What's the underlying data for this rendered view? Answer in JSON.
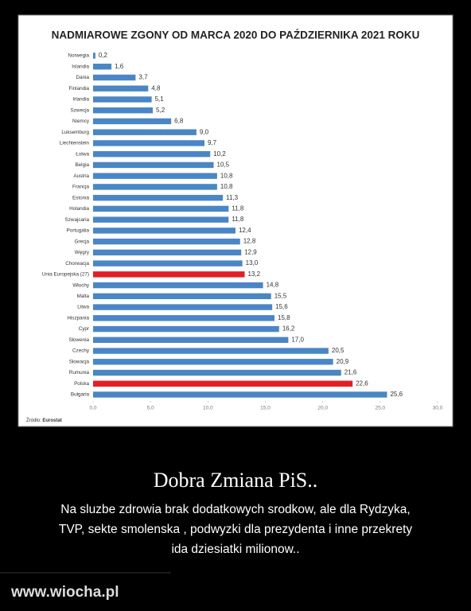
{
  "chart_data": {
    "type": "hbar",
    "title": "NADMIAROWE ZGONY OD MARCA 2020 DO PAŹDZIERNIKA 2021 ROKU",
    "categories": [
      "Norwegia",
      "Islandia",
      "Dania",
      "Finlandia",
      "Irlandia",
      "Szwecja",
      "Niemcy",
      "Luksemburg",
      "Liechtenstein",
      "Łotwa",
      "Belgia",
      "Austria",
      "Francja",
      "Estonia",
      "Holandia",
      "Szwajcaria",
      "Portugalia",
      "Grecja",
      "Węgry",
      "Chorwacja",
      "Unia Europejska (27)",
      "Włochy",
      "Malta",
      "Litwa",
      "Hiszpania",
      "Cypr",
      "Słowenia",
      "Czechy",
      "Słowacja",
      "Rumunia",
      "Polska",
      "Bułgaria"
    ],
    "values": [
      0.2,
      1.6,
      3.7,
      4.8,
      5.1,
      5.2,
      6.8,
      9.0,
      9.7,
      10.2,
      10.5,
      10.8,
      10.8,
      11.3,
      11.8,
      11.8,
      12.4,
      12.8,
      12.9,
      13.0,
      13.2,
      14.8,
      15.5,
      15.6,
      15.8,
      16.2,
      17.0,
      20.5,
      20.9,
      21.6,
      22.6,
      25.6
    ],
    "value_labels": [
      "0,2",
      "1,6",
      "3,7",
      "4,8",
      "5,1",
      "5,2",
      "6,8",
      "9,0",
      "9,7",
      "10,2",
      "10,5",
      "10,8",
      "10,8",
      "11,3",
      "11,8",
      "11,8",
      "12,4",
      "12,8",
      "12,9",
      "13,0",
      "13,2",
      "14,8",
      "15,5",
      "15,6",
      "15,8",
      "16,2",
      "17,0",
      "20,5",
      "20,9",
      "21,6",
      "22,6",
      "25,6"
    ],
    "colors": [
      "#4a86c5",
      "#4a86c5",
      "#4a86c5",
      "#4a86c5",
      "#4a86c5",
      "#4a86c5",
      "#4a86c5",
      "#4a86c5",
      "#4a86c5",
      "#4a86c5",
      "#4a86c5",
      "#4a86c5",
      "#4a86c5",
      "#4a86c5",
      "#4a86c5",
      "#4a86c5",
      "#4a86c5",
      "#4a86c5",
      "#4a86c5",
      "#4a86c5",
      "#e31e24",
      "#4a86c5",
      "#4a86c5",
      "#4a86c5",
      "#4a86c5",
      "#4a86c5",
      "#4a86c5",
      "#4a86c5",
      "#4a86c5",
      "#4a86c5",
      "#e31e24",
      "#4a86c5"
    ],
    "xlim": [
      0,
      30
    ],
    "xticks": [
      {
        "value": 0,
        "label": "0,0"
      },
      {
        "value": 5,
        "label": "5,0"
      },
      {
        "value": 10,
        "label": "10,0"
      },
      {
        "value": 15,
        "label": "15,0"
      },
      {
        "value": 20,
        "label": "20,0"
      },
      {
        "value": 25,
        "label": "25,0"
      },
      {
        "value": 30,
        "label": "30,0"
      }
    ],
    "source_label": "Źródło:",
    "source": "Eurostat"
  },
  "caption": {
    "title": "Dobra Zmiana PiS..",
    "lines": [
      "Na sluzbe zdrowia  brak dodatkowych srodkow, ale dla Rydzyka,",
      "TVP, sekte smolenska , podwyzki dla prezydenta  i inne przekrety",
      "ida  dziesiatki milionow.."
    ]
  },
  "watermark": "www.wiocha.pl"
}
